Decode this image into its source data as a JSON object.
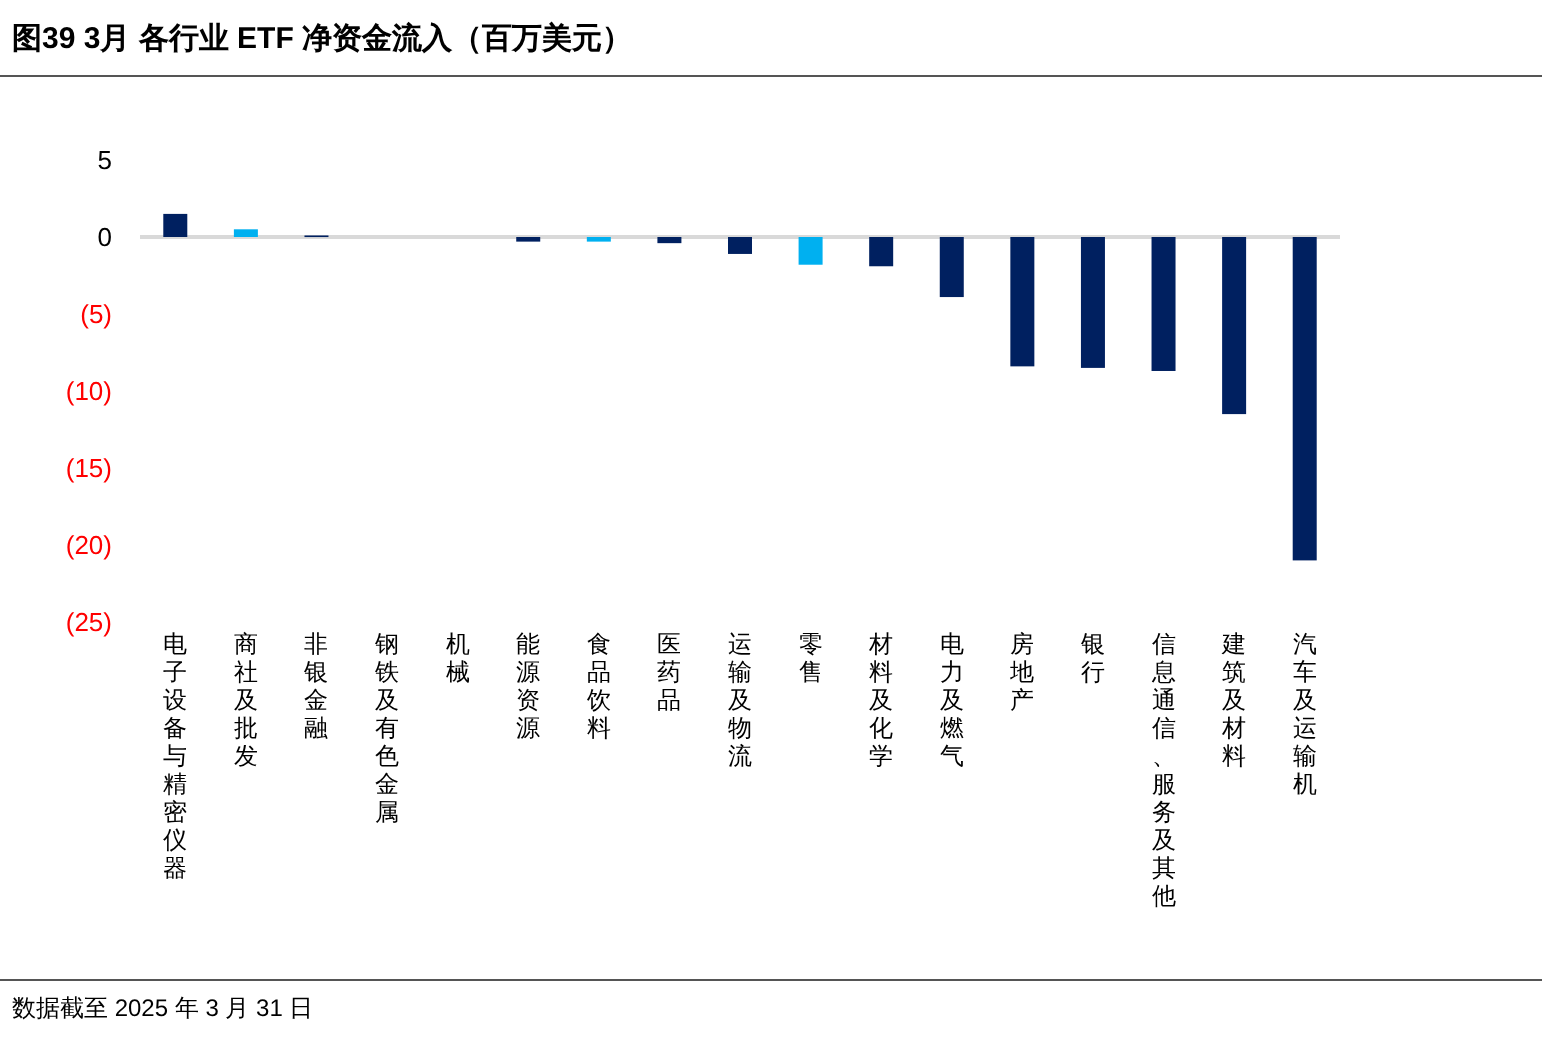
{
  "chart_data": {
    "type": "bar",
    "title": "图39 3月 各行业 ETF 净资金流入（百万美元）",
    "categories": [
      "电子设备与精密仪器",
      "商社及批发",
      "非银金融",
      "钢铁及有色金属",
      "机械",
      "能源资源",
      "食品饮料",
      "医药品",
      "运输及物流",
      "零售",
      "材料及化学",
      "电力及燃气",
      "房地产",
      "银行",
      "信息通信、服务及其他",
      "建筑及材料",
      "汽车及运输机"
    ],
    "values": [
      1.5,
      0.5,
      0.1,
      0,
      0,
      -0.3,
      -0.3,
      -0.4,
      -1.1,
      -1.8,
      -1.9,
      -3.9,
      -8.4,
      -8.5,
      -8.7,
      -11.5,
      -21.0
    ],
    "colors": [
      "#002060",
      "#00b0f0",
      "#002060",
      "#002060",
      "#002060",
      "#002060",
      "#00b0f0",
      "#002060",
      "#002060",
      "#00b0f0",
      "#002060",
      "#002060",
      "#002060",
      "#002060",
      "#002060",
      "#002060",
      "#002060"
    ],
    "ylim": [
      -25,
      5
    ],
    "yticks": [
      5,
      0,
      {
        "value": -5,
        "label": "(5)"
      },
      {
        "value": -10,
        "label": "(10)"
      },
      {
        "value": -15,
        "label": "(15)"
      },
      {
        "value": -20,
        "label": "(20)"
      },
      {
        "value": -25,
        "label": "(25)"
      }
    ],
    "annotations": [
      "数据截至 2025 年 3 月 31 日"
    ]
  }
}
